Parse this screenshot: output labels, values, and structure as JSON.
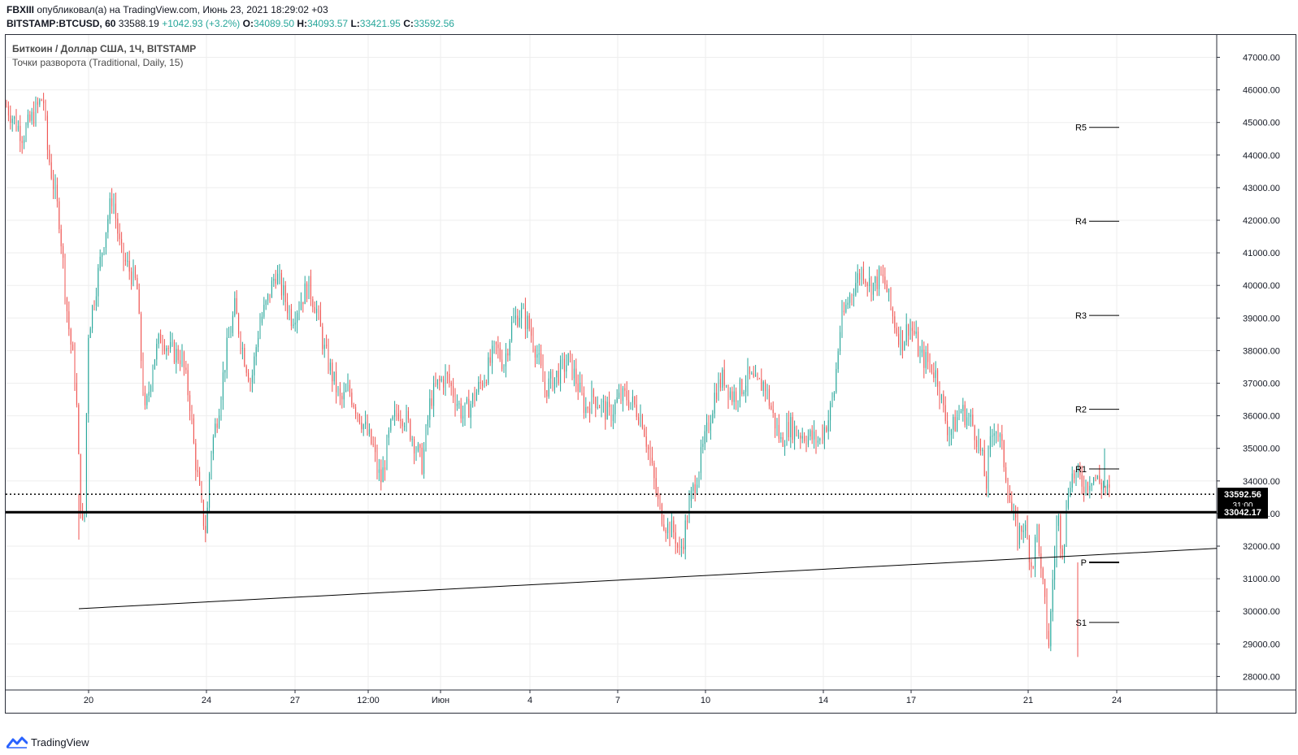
{
  "header": {
    "publisher": "FBXIII",
    "published_text": " опубликовал(а) на TradingView.com, Июнь 23, 2021 18:29:02 +03",
    "symbol": "BITSTAMP:BTCUSD, 60",
    "last": "33588.19",
    "change": "+1042.93 (+3.2%)",
    "o_label": "O:",
    "o_value": "34089.50",
    "h_label": "H:",
    "h_value": "34093.57",
    "l_label": "L:",
    "l_value": "33421.95",
    "c_label": "C:",
    "c_value": "33592.56"
  },
  "legend": {
    "title": "Биткоин / Доллар США, 1Ч, BITSTAMP",
    "indicator": "Точки разворота (Traditional, Daily, 15)"
  },
  "brand": {
    "logo_icon": "tradingview-logo-icon",
    "label": "TradingView"
  },
  "colors": {
    "up": "#26a69a",
    "down": "#ef5350",
    "price_tag": "#000000",
    "grid": "#eeeeee"
  },
  "chart_data": {
    "type": "candlestick",
    "ylim": [
      27500,
      47500
    ],
    "y_ticks": [
      "28000.00",
      "29000.00",
      "30000.00",
      "31000.00",
      "32000.00",
      "33000.00",
      "34000.00",
      "35000.00",
      "36000.00",
      "37000.00",
      "38000.00",
      "39000.00",
      "40000.00",
      "41000.00",
      "42000.00",
      "43000.00",
      "44000.00",
      "45000.00",
      "46000.00",
      "47000.00"
    ],
    "x_ticks": [
      "20",
      "24",
      "27",
      "12:00",
      "Июн",
      "4",
      "7",
      "10",
      "14",
      "17",
      "21",
      "24"
    ],
    "last_price": {
      "value": 33592.56,
      "label": "33592.56",
      "countdown": "31:00"
    },
    "horizontal_level": {
      "value": 33042.17,
      "label": "33042.17"
    },
    "pivot_levels": [
      {
        "name": "R5",
        "value": 44850
      },
      {
        "name": "R4",
        "value": 41970
      },
      {
        "name": "R3",
        "value": 39080
      },
      {
        "name": "R2",
        "value": 36200
      },
      {
        "name": "R1",
        "value": 34370
      },
      {
        "name": "P",
        "value": 31500
      },
      {
        "name": "S1",
        "value": 29660
      }
    ],
    "trendline": {
      "from_value": 30080,
      "to_value": 31930
    },
    "price_path": [
      [
        0,
        45500
      ],
      [
        0.02,
        44600
      ],
      [
        0.045,
        45800
      ],
      [
        0.05,
        44200
      ],
      [
        0.065,
        42000
      ],
      [
        0.075,
        39000
      ],
      [
        0.085,
        37000
      ],
      [
        0.09,
        33600
      ],
      [
        0.095,
        32100
      ],
      [
        0.1,
        38500
      ],
      [
        0.11,
        40000
      ],
      [
        0.12,
        41500
      ],
      [
        0.13,
        42800
      ],
      [
        0.14,
        41000
      ],
      [
        0.15,
        40500
      ],
      [
        0.16,
        40000
      ],
      [
        0.165,
        37800
      ],
      [
        0.17,
        36000
      ],
      [
        0.18,
        37700
      ],
      [
        0.19,
        38500
      ],
      [
        0.2,
        38000
      ],
      [
        0.215,
        37800
      ],
      [
        0.225,
        36400
      ],
      [
        0.23,
        35000
      ],
      [
        0.235,
        34000
      ],
      [
        0.24,
        33000
      ],
      [
        0.245,
        32400
      ],
      [
        0.25,
        34800
      ],
      [
        0.26,
        36200
      ],
      [
        0.27,
        38000
      ],
      [
        0.28,
        39300
      ],
      [
        0.29,
        38000
      ],
      [
        0.3,
        37000
      ],
      [
        0.31,
        38800
      ],
      [
        0.32,
        39500
      ],
      [
        0.33,
        40400
      ],
      [
        0.34,
        39700
      ],
      [
        0.35,
        39000
      ],
      [
        0.36,
        39500
      ],
      [
        0.37,
        40000
      ],
      [
        0.38,
        39300
      ],
      [
        0.39,
        38000
      ],
      [
        0.4,
        37200
      ],
      [
        0.41,
        36400
      ],
      [
        0.42,
        36800
      ],
      [
        0.43,
        36200
      ],
      [
        0.44,
        35600
      ],
      [
        0.45,
        35000
      ],
      [
        0.455,
        34300
      ],
      [
        0.46,
        34000
      ],
      [
        0.47,
        35500
      ],
      [
        0.48,
        36200
      ],
      [
        0.49,
        35900
      ],
      [
        0.5,
        35200
      ],
      [
        0.51,
        34500
      ],
      [
        0.52,
        36500
      ],
      [
        0.53,
        37000
      ],
      [
        0.54,
        37200
      ],
      [
        0.55,
        36600
      ],
      [
        0.56,
        36000
      ],
      [
        0.57,
        36400
      ],
      [
        0.58,
        36900
      ],
      [
        0.59,
        37400
      ],
      [
        0.6,
        38100
      ],
      [
        0.61,
        37600
      ],
      [
        0.62,
        38800
      ],
      [
        0.63,
        39200
      ],
      [
        0.64,
        38800
      ],
      [
        0.65,
        38000
      ],
      [
        0.66,
        36800
      ],
      [
        0.67,
        37100
      ],
      [
        0.68,
        37400
      ],
      [
        0.69,
        37700
      ],
      [
        0.7,
        37000
      ],
      [
        0.71,
        36200
      ],
      [
        0.72,
        36600
      ],
      [
        0.73,
        36300
      ],
      [
        0.74,
        36000
      ],
      [
        0.75,
        36500
      ],
      [
        0.76,
        36600
      ],
      [
        0.77,
        36300
      ],
      [
        0.78,
        35900
      ],
      [
        0.79,
        34600
      ],
      [
        0.8,
        33200
      ],
      [
        0.81,
        32600
      ],
      [
        0.82,
        32400
      ],
      [
        0.825,
        31700
      ],
      [
        0.83,
        32200
      ],
      [
        0.835,
        32900
      ],
      [
        0.84,
        33500
      ],
      [
        0.85,
        34500
      ],
      [
        0.86,
        35600
      ],
      [
        0.87,
        36800
      ],
      [
        0.88,
        37200
      ],
      [
        0.89,
        36600
      ],
      [
        0.9,
        36800
      ],
      [
        0.91,
        37200
      ],
      [
        0.92,
        36900
      ],
      [
        0.93,
        37000
      ],
      [
        0.94,
        36000
      ],
      [
        0.95,
        35200
      ],
      [
        0.96,
        35700
      ],
      [
        0.97,
        35500
      ],
      [
        1.0,
        35200
      ]
    ],
    "price_path_2": [
      [
        0,
        35500
      ],
      [
        0.02,
        35900
      ],
      [
        0.04,
        36700
      ],
      [
        0.06,
        38600
      ],
      [
        0.08,
        39300
      ],
      [
        0.1,
        39800
      ],
      [
        0.12,
        40200
      ],
      [
        0.14,
        40500
      ],
      [
        0.16,
        40100
      ],
      [
        0.18,
        40000
      ],
      [
        0.2,
        40300
      ],
      [
        0.22,
        40000
      ],
      [
        0.24,
        39200
      ],
      [
        0.26,
        38600
      ],
      [
        0.28,
        38300
      ],
      [
        0.3,
        38800
      ],
      [
        0.32,
        38500
      ],
      [
        0.34,
        37800
      ],
      [
        0.36,
        37700
      ],
      [
        0.38,
        37500
      ],
      [
        0.4,
        37200
      ],
      [
        0.42,
        36200
      ],
      [
        0.44,
        35500
      ],
      [
        0.46,
        35700
      ],
      [
        0.48,
        36200
      ],
      [
        0.5,
        36000
      ],
      [
        0.52,
        35800
      ],
      [
        0.54,
        35300
      ],
      [
        0.56,
        34500
      ],
      [
        0.57,
        33800
      ],
      [
        0.58,
        34900
      ],
      [
        0.6,
        35800
      ],
      [
        0.62,
        35200
      ],
      [
        0.64,
        34200
      ],
      [
        0.66,
        33000
      ],
      [
        0.68,
        32300
      ],
      [
        0.7,
        32700
      ],
      [
        0.72,
        31900
      ],
      [
        0.73,
        31300
      ],
      [
        0.75,
        32700
      ],
      [
        0.76,
        31200
      ],
      [
        0.77,
        30600
      ],
      [
        0.78,
        29700
      ],
      [
        0.79,
        28900
      ],
      [
        0.8,
        30700
      ],
      [
        0.81,
        31900
      ],
      [
        0.82,
        33000
      ],
      [
        0.83,
        32200
      ],
      [
        0.84,
        32000
      ],
      [
        0.86,
        34100
      ],
      [
        0.88,
        34200
      ],
      [
        0.9,
        34000
      ],
      [
        0.92,
        33900
      ],
      [
        0.94,
        34200
      ],
      [
        1.0,
        33600
      ]
    ]
  }
}
